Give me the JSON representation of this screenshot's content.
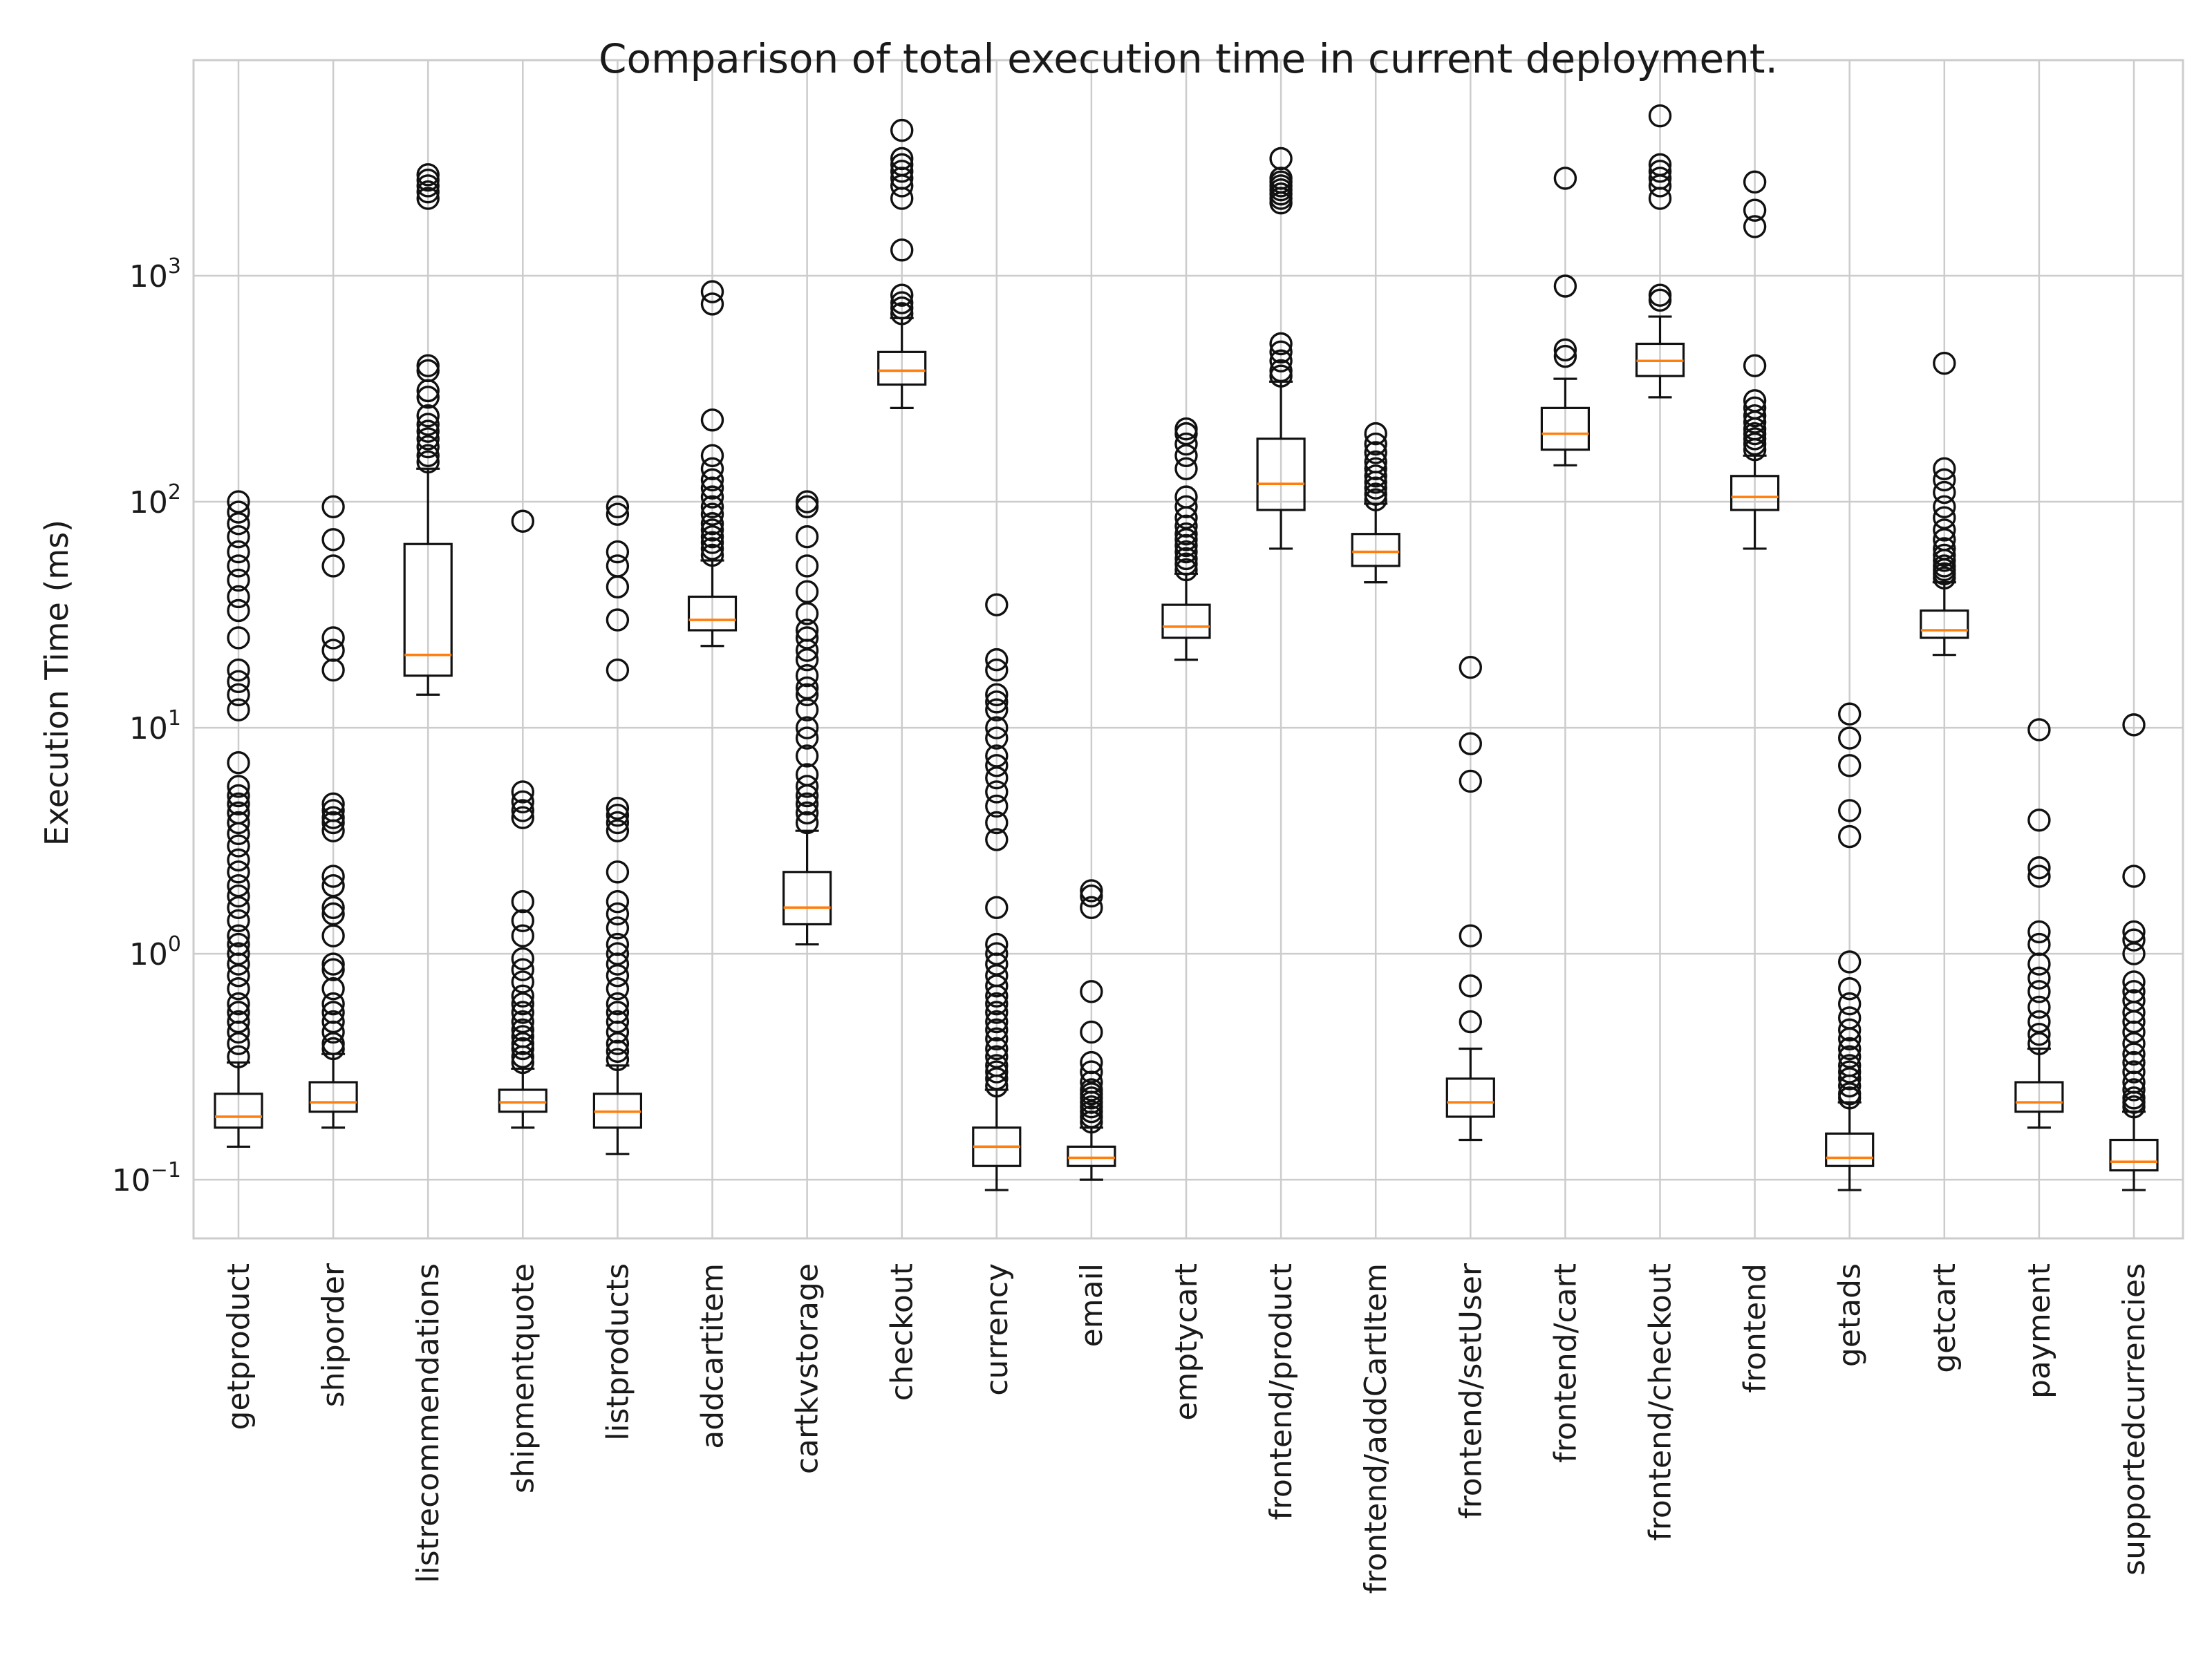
{
  "chart_data": {
    "type": "box",
    "title": "Comparison of total execution time in current deployment.",
    "ylabel": "Execution Time (ms)",
    "xlabel": "",
    "yscale": "log",
    "ylim": [
      0.055,
      9000
    ],
    "yticks": [
      {
        "value": 0.1,
        "base": "10",
        "exp": "−1"
      },
      {
        "value": 1,
        "base": "10",
        "exp": "0"
      },
      {
        "value": 10,
        "base": "10",
        "exp": "1"
      },
      {
        "value": 100,
        "base": "10",
        "exp": "2"
      },
      {
        "value": 1000,
        "base": "10",
        "exp": "3"
      }
    ],
    "grid": true,
    "categories": [
      "getproduct",
      "shiporder",
      "listrecommendations",
      "shipmentquote",
      "listproducts",
      "addcartitem",
      "cartkvstorage",
      "checkout",
      "currency",
      "email",
      "emptycart",
      "frontend/product",
      "frontend/addCartItem",
      "frontend/setUser",
      "frontend/cart",
      "frontend/checkout",
      "frontend",
      "getads",
      "getcart",
      "payment",
      "supportedcurrencies"
    ],
    "boxes": [
      {
        "name": "getproduct",
        "whislo": 0.14,
        "q1": 0.17,
        "med": 0.19,
        "q3": 0.24,
        "whishi": 0.33,
        "fliers": [
          0.35,
          0.4,
          0.45,
          0.5,
          0.55,
          0.6,
          0.7,
          0.8,
          0.9,
          1.0,
          1.1,
          1.2,
          1.4,
          1.6,
          1.8,
          2.0,
          2.3,
          2.6,
          3.0,
          3.4,
          3.8,
          4.2,
          4.6,
          5.0,
          5.5,
          7.0,
          12,
          14,
          16,
          18,
          25,
          33,
          38,
          45,
          52,
          60,
          70,
          80,
          90,
          100
        ]
      },
      {
        "name": "shiporder",
        "whislo": 0.17,
        "q1": 0.2,
        "med": 0.22,
        "q3": 0.27,
        "whishi": 0.36,
        "fliers": [
          0.38,
          0.4,
          0.45,
          0.5,
          0.55,
          0.6,
          0.7,
          0.85,
          0.9,
          1.2,
          1.5,
          1.6,
          2.0,
          2.2,
          3.5,
          3.8,
          4.0,
          4.3,
          4.6,
          18,
          22,
          25,
          52,
          68,
          95
        ]
      },
      {
        "name": "listrecommendations",
        "whislo": 14,
        "q1": 17,
        "med": 21,
        "q3": 65,
        "whishi": 140,
        "fliers": [
          150,
          160,
          175,
          190,
          205,
          220,
          240,
          290,
          310,
          380,
          400,
          2200,
          2350,
          2500,
          2650,
          2800
        ]
      },
      {
        "name": "shipmentquote",
        "whislo": 0.17,
        "q1": 0.2,
        "med": 0.22,
        "q3": 0.25,
        "whishi": 0.31,
        "fliers": [
          0.33,
          0.35,
          0.38,
          0.4,
          0.43,
          0.46,
          0.5,
          0.55,
          0.6,
          0.65,
          0.75,
          0.85,
          0.95,
          1.2,
          1.4,
          1.7,
          4.0,
          4.3,
          4.7,
          5.2,
          82
        ]
      },
      {
        "name": "listproducts",
        "whislo": 0.13,
        "q1": 0.17,
        "med": 0.2,
        "q3": 0.24,
        "whishi": 0.32,
        "fliers": [
          0.34,
          0.37,
          0.4,
          0.45,
          0.5,
          0.55,
          0.6,
          0.7,
          0.8,
          0.9,
          1.0,
          1.1,
          1.3,
          1.5,
          1.7,
          2.3,
          3.5,
          3.8,
          4.1,
          4.4,
          18,
          30,
          42,
          52,
          60,
          88,
          95
        ]
      },
      {
        "name": "addcartitem",
        "whislo": 23,
        "q1": 27,
        "med": 30,
        "q3": 38,
        "whishi": 55,
        "fliers": [
          58,
          62,
          66,
          70,
          75,
          80,
          88,
          95,
          105,
          115,
          125,
          140,
          160,
          230,
          750,
          850
        ]
      },
      {
        "name": "cartkvstorage",
        "whislo": 1.1,
        "q1": 1.35,
        "med": 1.6,
        "q3": 2.3,
        "whishi": 3.5,
        "fliers": [
          3.8,
          4.2,
          4.6,
          5.0,
          5.5,
          6.2,
          7.5,
          9,
          10,
          12,
          14,
          15,
          17,
          20,
          22,
          25,
          27,
          32,
          40,
          52,
          70,
          95,
          100
        ]
      },
      {
        "name": "checkout",
        "whislo": 260,
        "q1": 330,
        "med": 380,
        "q3": 460,
        "whishi": 650,
        "fliers": [
          680,
          720,
          760,
          820,
          1300,
          2200,
          2500,
          2700,
          2900,
          3100,
          3300,
          4400
        ]
      },
      {
        "name": "currency",
        "whislo": 0.09,
        "q1": 0.115,
        "med": 0.14,
        "q3": 0.17,
        "whishi": 0.25,
        "fliers": [
          0.26,
          0.28,
          0.3,
          0.32,
          0.35,
          0.38,
          0.42,
          0.46,
          0.5,
          0.55,
          0.6,
          0.65,
          0.72,
          0.8,
          0.9,
          1.0,
          1.1,
          1.6,
          3.2,
          3.8,
          4.5,
          5.2,
          6.0,
          6.8,
          7.5,
          9,
          10,
          12,
          13,
          14,
          18,
          20,
          35
        ]
      },
      {
        "name": "email",
        "whislo": 0.1,
        "q1": 0.115,
        "med": 0.125,
        "q3": 0.14,
        "whishi": 0.17,
        "fliers": [
          0.18,
          0.19,
          0.2,
          0.21,
          0.22,
          0.23,
          0.24,
          0.25,
          0.27,
          0.3,
          0.33,
          0.45,
          0.68,
          1.6,
          1.8,
          1.9
        ]
      },
      {
        "name": "emptycart",
        "whislo": 20,
        "q1": 25,
        "med": 28,
        "q3": 35,
        "whishi": 48,
        "fliers": [
          50,
          53,
          56,
          60,
          64,
          68,
          72,
          78,
          85,
          95,
          105,
          140,
          160,
          180,
          200,
          210
        ]
      },
      {
        "name": "frontend/product",
        "whislo": 62,
        "q1": 92,
        "med": 120,
        "q3": 190,
        "whishi": 340,
        "fliers": [
          360,
          380,
          420,
          460,
          500,
          2100,
          2200,
          2300,
          2400,
          2500,
          2600,
          2700,
          3300
        ]
      },
      {
        "name": "frontend/addCartItem",
        "whislo": 44,
        "q1": 52,
        "med": 60,
        "q3": 72,
        "whishi": 98,
        "fliers": [
          102,
          108,
          115,
          122,
          130,
          140,
          150,
          165,
          180,
          200
        ]
      },
      {
        "name": "frontend/setUser",
        "whislo": 0.15,
        "q1": 0.19,
        "med": 0.22,
        "q3": 0.28,
        "whishi": 0.38,
        "fliers": [
          0.5,
          0.72,
          1.2,
          5.8,
          8.5,
          18.5
        ]
      },
      {
        "name": "frontend/cart",
        "whislo": 145,
        "q1": 170,
        "med": 200,
        "q3": 260,
        "whishi": 350,
        "fliers": [
          440,
          470,
          900,
          2700
        ]
      },
      {
        "name": "frontend/checkout",
        "whislo": 290,
        "q1": 360,
        "med": 420,
        "q3": 500,
        "whishi": 660,
        "fliers": [
          780,
          820,
          2200,
          2500,
          2700,
          2900,
          3100,
          5100
        ]
      },
      {
        "name": "frontend",
        "whislo": 62,
        "q1": 92,
        "med": 105,
        "q3": 130,
        "whishi": 160,
        "fliers": [
          170,
          180,
          190,
          200,
          210,
          225,
          240,
          260,
          280,
          400,
          1650,
          1950,
          2600
        ]
      },
      {
        "name": "getads",
        "whislo": 0.09,
        "q1": 0.115,
        "med": 0.125,
        "q3": 0.16,
        "whishi": 0.22,
        "fliers": [
          0.23,
          0.24,
          0.26,
          0.28,
          0.3,
          0.32,
          0.35,
          0.38,
          0.42,
          0.46,
          0.52,
          0.6,
          0.7,
          0.92,
          3.3,
          4.3,
          6.8,
          9.0,
          11.5
        ]
      },
      {
        "name": "getcart",
        "whislo": 21,
        "q1": 25,
        "med": 27,
        "q3": 33,
        "whishi": 44,
        "fliers": [
          46,
          48,
          50,
          52,
          55,
          58,
          62,
          68,
          75,
          85,
          95,
          110,
          125,
          140,
          410
        ]
      },
      {
        "name": "payment",
        "whislo": 0.17,
        "q1": 0.2,
        "med": 0.22,
        "q3": 0.27,
        "whishi": 0.38,
        "fliers": [
          0.4,
          0.44,
          0.5,
          0.58,
          0.68,
          0.78,
          0.9,
          1.1,
          1.25,
          2.2,
          2.4,
          3.9,
          9.8
        ]
      },
      {
        "name": "supportedcurrencies",
        "whislo": 0.09,
        "q1": 0.11,
        "med": 0.12,
        "q3": 0.15,
        "whishi": 0.2,
        "fliers": [
          0.21,
          0.22,
          0.23,
          0.25,
          0.27,
          0.3,
          0.33,
          0.36,
          0.4,
          0.45,
          0.5,
          0.55,
          0.62,
          0.68,
          0.75,
          1.0,
          1.15,
          1.25,
          2.2,
          10.3
        ]
      }
    ]
  }
}
